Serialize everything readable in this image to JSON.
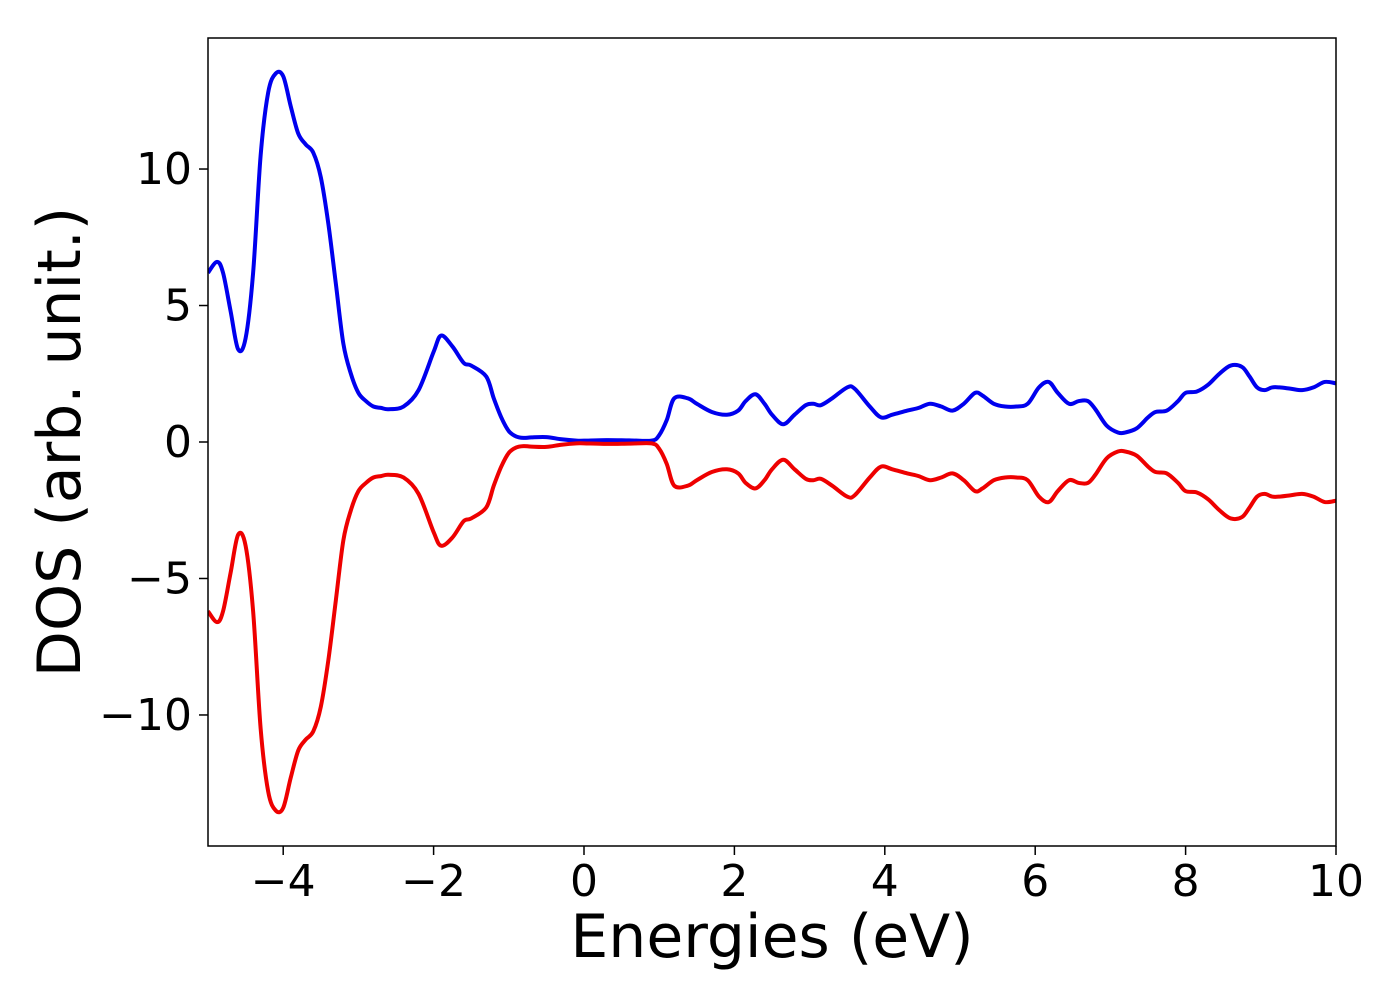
{
  "chart_data": {
    "type": "line",
    "xlabel": "Energies (eV)",
    "ylabel": "DOS (arb. unit.)",
    "xlim": [
      -5,
      10
    ],
    "ylim": [
      -14.8,
      14.8
    ],
    "grid": false,
    "xticks": [
      -4,
      -2,
      0,
      2,
      4,
      6,
      8,
      10
    ],
    "yticks": [
      -10,
      -5,
      0,
      5,
      10
    ],
    "xtick_labels": [
      "−4",
      "−2",
      "0",
      "2",
      "4",
      "6",
      "8",
      "10"
    ],
    "ytick_labels": [
      "−10",
      "−5",
      "0",
      "5",
      "10"
    ],
    "series": [
      {
        "color": "#0000ee",
        "x": [
          -5.0,
          -4.88,
          -4.8,
          -4.7,
          -4.6,
          -4.5,
          -4.4,
          -4.3,
          -4.2,
          -4.1,
          -4.0,
          -3.9,
          -3.8,
          -3.7,
          -3.6,
          -3.5,
          -3.4,
          -3.3,
          -3.2,
          -3.1,
          -3.0,
          -2.9,
          -2.8,
          -2.7,
          -2.6,
          -2.4,
          -2.2,
          -2.0,
          -1.9,
          -1.75,
          -1.6,
          -1.5,
          -1.3,
          -1.2,
          -1.1,
          -1.0,
          -0.9,
          -0.8,
          -0.7,
          -0.5,
          -0.3,
          -0.1,
          0.0,
          0.3,
          0.6,
          0.9,
          1.0,
          1.1,
          1.2,
          1.38,
          1.5,
          1.7,
          1.9,
          2.05,
          2.15,
          2.28,
          2.4,
          2.5,
          2.65,
          2.8,
          2.95,
          3.05,
          3.15,
          3.3,
          3.5,
          3.6,
          3.8,
          3.95,
          4.1,
          4.3,
          4.45,
          4.6,
          4.75,
          4.9,
          5.05,
          5.2,
          5.3,
          5.45,
          5.6,
          5.75,
          5.9,
          6.05,
          6.18,
          6.3,
          6.45,
          6.58,
          6.7,
          6.8,
          6.95,
          7.1,
          7.2,
          7.35,
          7.5,
          7.6,
          7.75,
          7.9,
          8.0,
          8.15,
          8.3,
          8.45,
          8.6,
          8.75,
          8.85,
          8.95,
          9.05,
          9.15,
          9.25,
          9.4,
          9.55,
          9.7,
          9.85,
          10.0
        ],
        "y": [
          6.2,
          6.6,
          6.2,
          4.8,
          3.4,
          3.8,
          6.2,
          10.5,
          12.8,
          13.5,
          13.4,
          12.3,
          11.3,
          10.9,
          10.6,
          9.7,
          8.0,
          5.8,
          3.6,
          2.5,
          1.8,
          1.5,
          1.3,
          1.25,
          1.2,
          1.3,
          1.9,
          3.3,
          3.9,
          3.5,
          2.9,
          2.8,
          2.4,
          1.6,
          0.9,
          0.4,
          0.2,
          0.15,
          0.17,
          0.18,
          0.1,
          0.05,
          0.05,
          0.07,
          0.06,
          0.05,
          0.25,
          0.8,
          1.6,
          1.6,
          1.4,
          1.1,
          1.0,
          1.15,
          1.5,
          1.75,
          1.4,
          1.0,
          0.65,
          1.0,
          1.35,
          1.4,
          1.35,
          1.6,
          2.0,
          1.95,
          1.3,
          0.9,
          1.0,
          1.15,
          1.25,
          1.4,
          1.3,
          1.15,
          1.4,
          1.8,
          1.7,
          1.4,
          1.3,
          1.3,
          1.4,
          2.0,
          2.2,
          1.8,
          1.4,
          1.5,
          1.5,
          1.2,
          0.6,
          0.35,
          0.35,
          0.5,
          0.9,
          1.1,
          1.15,
          1.5,
          1.8,
          1.85,
          2.1,
          2.5,
          2.8,
          2.75,
          2.4,
          2.0,
          1.9,
          2.0,
          2.0,
          1.95,
          1.9,
          2.0,
          2.2,
          2.15
        ]
      },
      {
        "color": "#ee0000",
        "x": [
          -5.0,
          -4.88,
          -4.8,
          -4.7,
          -4.6,
          -4.5,
          -4.4,
          -4.3,
          -4.2,
          -4.1,
          -4.0,
          -3.9,
          -3.8,
          -3.7,
          -3.6,
          -3.5,
          -3.4,
          -3.3,
          -3.2,
          -3.1,
          -3.0,
          -2.9,
          -2.8,
          -2.7,
          -2.6,
          -2.4,
          -2.2,
          -2.0,
          -1.9,
          -1.75,
          -1.6,
          -1.5,
          -1.3,
          -1.2,
          -1.1,
          -1.0,
          -0.9,
          -0.8,
          -0.7,
          -0.5,
          -0.3,
          -0.1,
          0.0,
          0.3,
          0.6,
          0.9,
          1.0,
          1.1,
          1.2,
          1.38,
          1.5,
          1.7,
          1.9,
          2.05,
          2.15,
          2.28,
          2.4,
          2.5,
          2.65,
          2.8,
          2.95,
          3.05,
          3.15,
          3.3,
          3.5,
          3.6,
          3.8,
          3.95,
          4.1,
          4.3,
          4.45,
          4.6,
          4.75,
          4.9,
          5.05,
          5.2,
          5.3,
          5.45,
          5.6,
          5.75,
          5.9,
          6.05,
          6.18,
          6.3,
          6.45,
          6.58,
          6.7,
          6.8,
          6.95,
          7.1,
          7.2,
          7.35,
          7.5,
          7.6,
          7.75,
          7.9,
          8.0,
          8.15,
          8.3,
          8.45,
          8.6,
          8.75,
          8.85,
          8.95,
          9.05,
          9.15,
          9.25,
          9.4,
          9.55,
          9.7,
          9.85,
          10.0
        ],
        "y": [
          -6.2,
          -6.6,
          -6.2,
          -4.8,
          -3.4,
          -3.8,
          -6.2,
          -10.5,
          -12.8,
          -13.5,
          -13.4,
          -12.3,
          -11.3,
          -10.9,
          -10.6,
          -9.7,
          -8.0,
          -5.8,
          -3.6,
          -2.5,
          -1.8,
          -1.5,
          -1.3,
          -1.25,
          -1.2,
          -1.3,
          -1.9,
          -3.3,
          -3.8,
          -3.5,
          -2.9,
          -2.8,
          -2.4,
          -1.6,
          -0.9,
          -0.4,
          -0.2,
          -0.15,
          -0.17,
          -0.18,
          -0.1,
          -0.05,
          -0.05,
          -0.07,
          -0.06,
          -0.05,
          -0.25,
          -0.8,
          -1.6,
          -1.6,
          -1.4,
          -1.1,
          -1.0,
          -1.15,
          -1.5,
          -1.7,
          -1.4,
          -1.0,
          -0.65,
          -1.0,
          -1.35,
          -1.4,
          -1.35,
          -1.6,
          -2.0,
          -1.95,
          -1.3,
          -0.9,
          -1.0,
          -1.15,
          -1.25,
          -1.4,
          -1.3,
          -1.15,
          -1.4,
          -1.8,
          -1.7,
          -1.4,
          -1.3,
          -1.3,
          -1.4,
          -2.0,
          -2.2,
          -1.8,
          -1.4,
          -1.5,
          -1.5,
          -1.2,
          -0.6,
          -0.35,
          -0.35,
          -0.5,
          -0.9,
          -1.1,
          -1.15,
          -1.5,
          -1.8,
          -1.85,
          -2.1,
          -2.5,
          -2.8,
          -2.75,
          -2.4,
          -2.0,
          -1.9,
          -2.0,
          -2.0,
          -1.95,
          -1.9,
          -2.0,
          -2.2,
          -2.15
        ]
      }
    ]
  }
}
